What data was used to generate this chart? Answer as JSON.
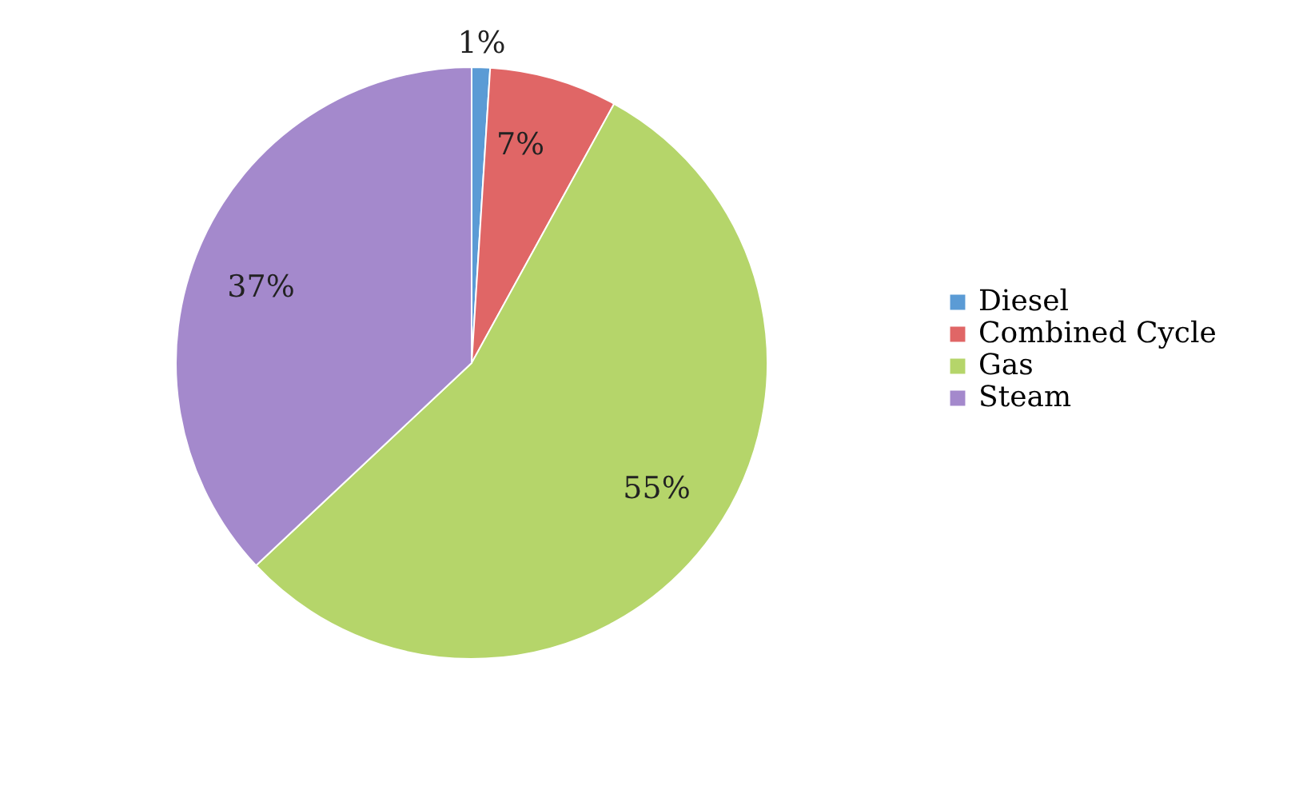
{
  "chart_data": {
    "type": "pie",
    "categories": [
      "Diesel",
      "Combined Cycle",
      "Gas",
      "Steam"
    ],
    "values": [
      1,
      7,
      55,
      37
    ],
    "colors": [
      "#5b9bd5",
      "#e06666",
      "#b5d56a",
      "#a489cc"
    ],
    "value_labels": [
      "1%",
      "7%",
      "55%",
      "37%"
    ],
    "legend": "right"
  }
}
